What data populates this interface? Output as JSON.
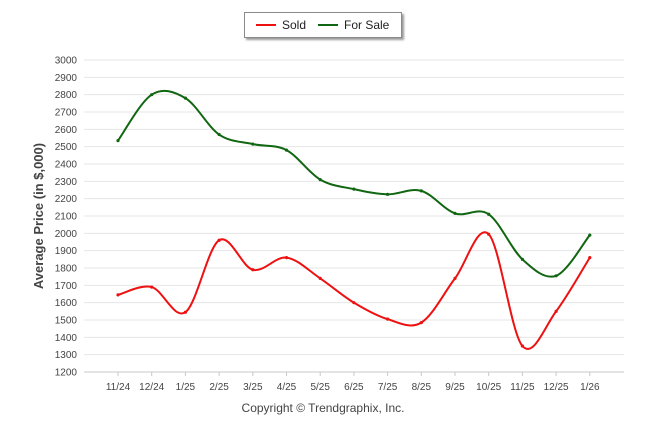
{
  "chart_data": {
    "type": "line",
    "ylabel": "Average Price (in $,000)",
    "xlabel": "",
    "categories": [
      "11/24",
      "12/24",
      "1/25",
      "2/25",
      "3/25",
      "4/25",
      "5/25",
      "6/25",
      "7/25",
      "8/25",
      "9/25",
      "10/25",
      "11/25",
      "12/25",
      "1/26"
    ],
    "ylim": [
      1200,
      3000
    ],
    "yticks": [
      1200,
      1300,
      1400,
      1500,
      1600,
      1700,
      1800,
      1900,
      2000,
      2100,
      2200,
      2300,
      2400,
      2500,
      2600,
      2700,
      2800,
      2900,
      3000
    ],
    "grid": true,
    "legend_position": "top-center",
    "series": [
      {
        "name": "Sold",
        "color": "#ee1111",
        "values": [
          1645,
          1690,
          1545,
          1960,
          1790,
          1860,
          1740,
          1600,
          1505,
          1485,
          1740,
          1995,
          1350,
          1550,
          1860
        ]
      },
      {
        "name": "For Sale",
        "color": "#116611",
        "values": [
          2535,
          2800,
          2780,
          2570,
          2515,
          2480,
          2310,
          2255,
          2225,
          2245,
          2115,
          2110,
          1850,
          1755,
          1990
        ]
      }
    ]
  },
  "footer": "Copyright © Trendgraphix, Inc."
}
